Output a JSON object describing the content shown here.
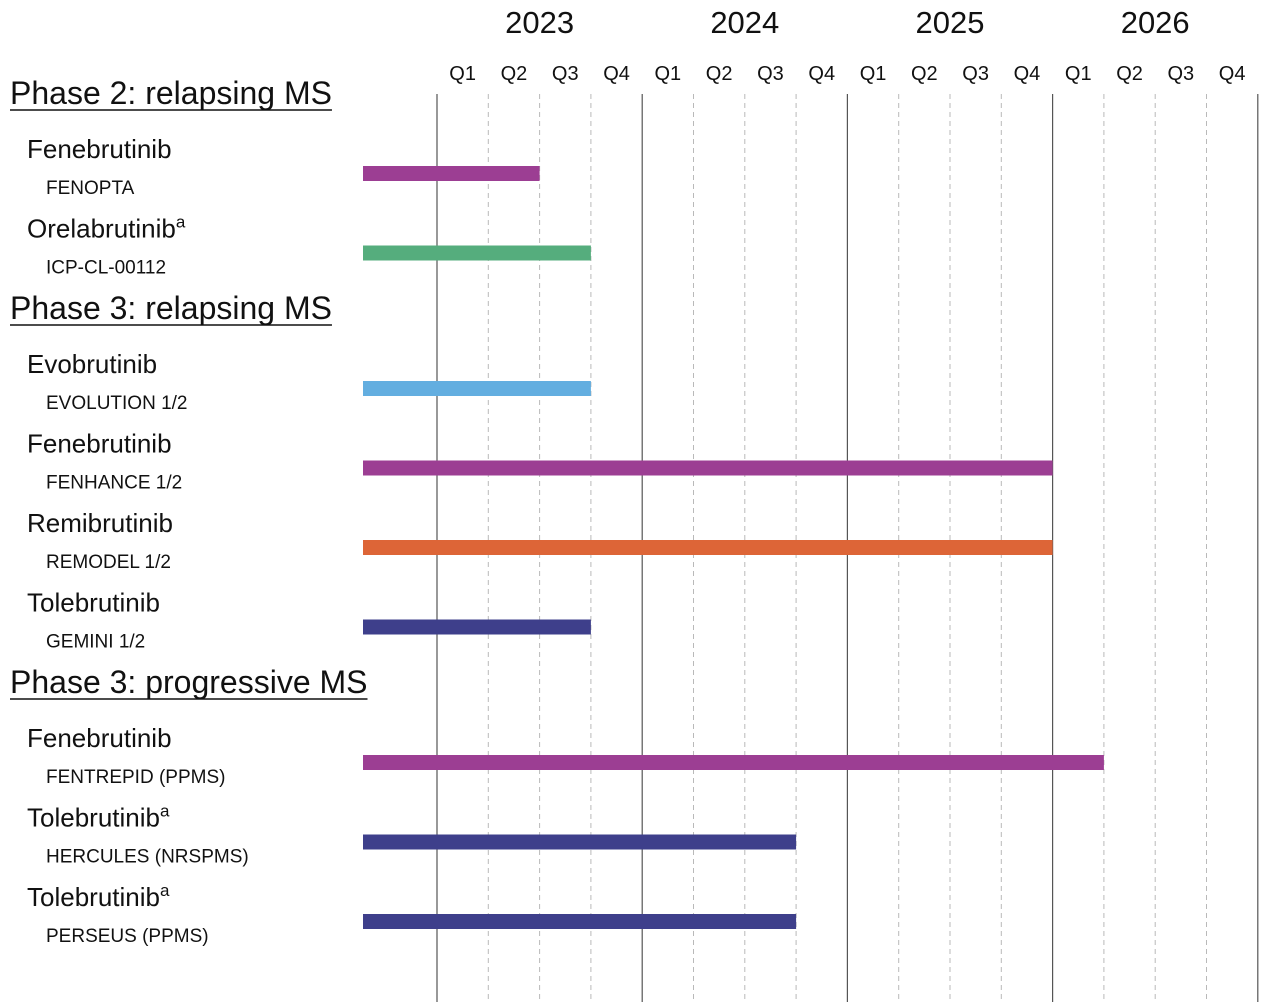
{
  "chart_data": {
    "type": "gantt",
    "title": "",
    "timeline": {
      "years": [
        "2023",
        "2024",
        "2025",
        "2026"
      ],
      "quarters": [
        "Q1",
        "Q2",
        "Q3",
        "Q4"
      ]
    },
    "sections": [
      {
        "title": "Phase 2: relapsing MS",
        "rows": [
          {
            "drug": "Fenebrutinib",
            "superscript": "",
            "trial": "FENOPTA",
            "end_year": 2023,
            "end_quarter": "Q2",
            "color": "#9c3e93"
          },
          {
            "drug": "Orelabrutinib",
            "superscript": "a",
            "trial": "ICP-CL-00112",
            "end_year": 2023,
            "end_quarter": "Q3",
            "color": "#55ad7d"
          }
        ]
      },
      {
        "title": "Phase 3: relapsing MS",
        "rows": [
          {
            "drug": "Evobrutinib",
            "superscript": "",
            "trial": "EVOLUTION 1/2",
            "end_year": 2023,
            "end_quarter": "Q3",
            "color": "#63aee0"
          },
          {
            "drug": "Fenebrutinib",
            "superscript": "",
            "trial": "FENHANCE 1/2",
            "end_year": 2025,
            "end_quarter": "Q4",
            "color": "#9c3e93"
          },
          {
            "drug": "Remibrutinib",
            "superscript": "",
            "trial": "REMODEL 1/2",
            "end_year": 2025,
            "end_quarter": "Q4",
            "color": "#dd6537"
          },
          {
            "drug": "Tolebrutinib",
            "superscript": "",
            "trial": "GEMINI 1/2",
            "end_year": 2023,
            "end_quarter": "Q3",
            "color": "#3e3f8b"
          }
        ]
      },
      {
        "title": "Phase 3: progressive MS",
        "rows": [
          {
            "drug": "Fenebrutinib",
            "superscript": "",
            "trial": "FENTREPID (PPMS)",
            "end_year": 2026,
            "end_quarter": "Q1",
            "color": "#9c3e93"
          },
          {
            "drug": "Tolebrutinib",
            "superscript": "a",
            "trial": "HERCULES (NRSPMS)",
            "end_year": 2024,
            "end_quarter": "Q3",
            "color": "#3e3f8b"
          },
          {
            "drug": "Tolebrutinib",
            "superscript": "a",
            "trial": "PERSEUS (PPMS)",
            "end_year": 2024,
            "end_quarter": "Q3",
            "color": "#3e3f8b"
          }
        ]
      }
    ],
    "grid": true,
    "legend": "none"
  }
}
